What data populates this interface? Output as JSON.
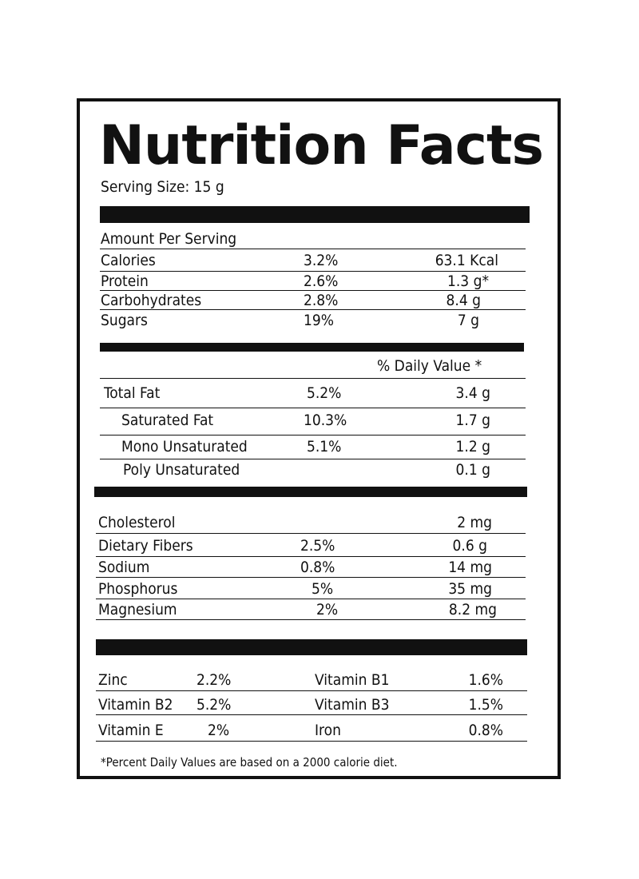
{
  "title": "Nutrition Facts",
  "serving_size": "Serving Size: 15 g",
  "amount_per_serving": "Amount Per Serving",
  "macros": [
    {
      "name": "Calories",
      "pct": "3.2%",
      "amount": "63.1 Kcal"
    },
    {
      "name": "Protein",
      "pct": "2.6%",
      "amount": "1.3 g*"
    },
    {
      "name": "Carbohydrates",
      "pct": "2.8%",
      "amount": "8.4 g"
    },
    {
      "name": "Sugars",
      "pct": "19%",
      "amount": "7 g"
    }
  ],
  "daily_value_header": "% Daily Value *",
  "fats": [
    {
      "name": "Total Fat",
      "pct": "5.2%",
      "amount": "3.4 g"
    },
    {
      "name": "Saturated Fat",
      "pct": "10.3%",
      "amount": "1.7 g"
    },
    {
      "name": "Mono Unsaturated",
      "pct": "5.1%",
      "amount": "1.2 g"
    },
    {
      "name": "Poly Unsaturated",
      "pct": "",
      "amount": "0.1 g"
    }
  ],
  "minerals": [
    {
      "name": "Cholesterol",
      "pct": "",
      "amount": "2 mg"
    },
    {
      "name": "Dietary Fibers",
      "pct": "2.5%",
      "amount": "0.6 g"
    },
    {
      "name": "Sodium",
      "pct": "0.8%",
      "amount": "14 mg"
    },
    {
      "name": "Phosphorus",
      "pct": "5%",
      "amount": "35 mg"
    },
    {
      "name": "Magnesium",
      "pct": "2%",
      "amount": "8.2 mg"
    }
  ],
  "vitamins": [
    {
      "left_name": "Zinc",
      "left_pct": "2.2%",
      "right_name": "Vitamin B1",
      "right_pct": "1.6%"
    },
    {
      "left_name": "Vitamin B2",
      "left_pct": "5.2%",
      "right_name": "Vitamin B3",
      "right_pct": "1.5%"
    },
    {
      "left_name": "Vitamin E",
      "left_pct": "2%",
      "right_name": "Iron",
      "right_pct": "0.8%"
    }
  ],
  "footnote": "*Percent Daily Values are based on a 2000 calorie diet."
}
